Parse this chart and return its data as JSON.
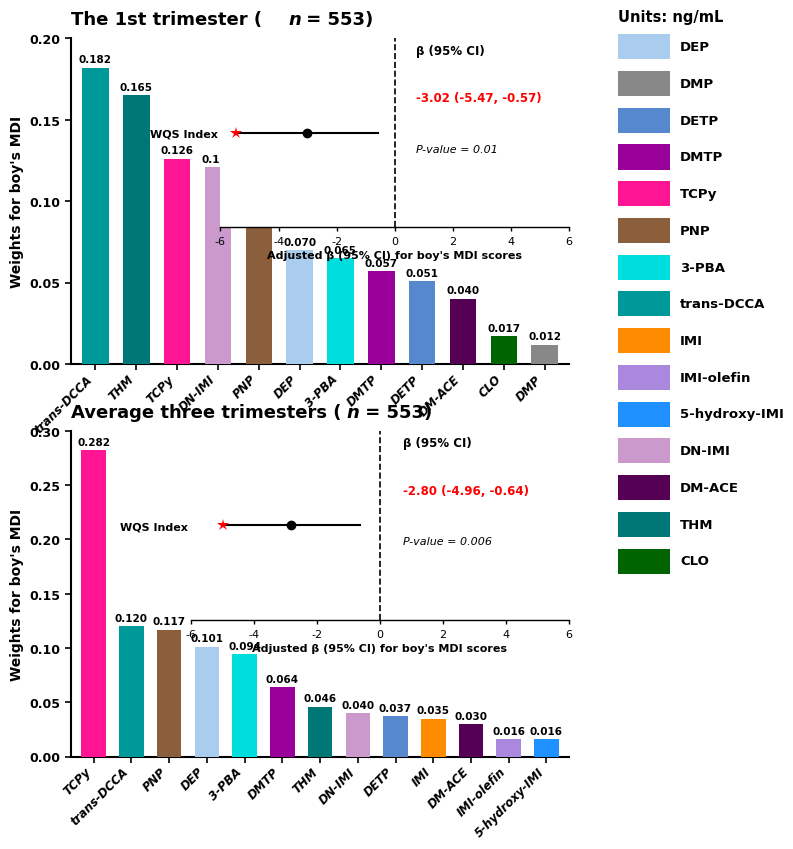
{
  "panel1_title_part1": "The 1st trimester ( ",
  "panel1_title_n": "n",
  "panel1_title_part2": " = 553)",
  "panel2_title_part1": "Average three trimesters ( ",
  "panel2_title_n": "n",
  "panel2_title_part2": " = 553)",
  "panel1_categories": [
    "trans-DCCA",
    "THM",
    "TCPy",
    "DN-IMI",
    "PNP",
    "DEP",
    "3-PBA",
    "DMTP",
    "DETP",
    "DM-ACE",
    "CLO",
    "DMP"
  ],
  "panel1_values": [
    0.182,
    0.165,
    0.126,
    0.121,
    0.096,
    0.07,
    0.065,
    0.057,
    0.051,
    0.04,
    0.017,
    0.012
  ],
  "panel1_colors": [
    "#009999",
    "#007777",
    "#FF1493",
    "#CC99CC",
    "#8B5E3C",
    "#AACCEE",
    "#00DDDD",
    "#990099",
    "#5588CC",
    "#550055",
    "#006400",
    "#888888"
  ],
  "panel1_ylim": [
    0.0,
    0.2
  ],
  "panel1_yticks": [
    0.0,
    0.05,
    0.1,
    0.15,
    0.2
  ],
  "panel2_categories": [
    "TCPy",
    "trans-DCCA",
    "PNP",
    "DEP",
    "3-PBA",
    "DMTP",
    "THM",
    "DN-IMI",
    "DETP",
    "IMI",
    "DM-ACE",
    "IMI-olefin",
    "5-hydroxy-IMI"
  ],
  "panel2_values": [
    0.282,
    0.12,
    0.117,
    0.101,
    0.094,
    0.064,
    0.046,
    0.04,
    0.037,
    0.035,
    0.03,
    0.016,
    0.016
  ],
  "panel2_colors": [
    "#FF1493",
    "#009999",
    "#8B5E3C",
    "#AACCEE",
    "#00DDDD",
    "#990099",
    "#007777",
    "#CC99CC",
    "#5588CC",
    "#FF8C00",
    "#550055",
    "#AA88DD",
    "#1E90FF"
  ],
  "panel2_ylim": [
    0.0,
    0.3
  ],
  "panel2_yticks": [
    0.0,
    0.05,
    0.1,
    0.15,
    0.2,
    0.25,
    0.3
  ],
  "ylabel": "Weights for boy's MDI",
  "inset_xlabel": "Adjusted β (95% CI) for boy's MDI scores",
  "panel1_beta": -3.02,
  "panel1_ci_low": -5.47,
  "panel1_ci_high": -0.57,
  "panel1_beta_str": "-3.02 (-5.47, -0.57)",
  "panel1_pval": "P-value = 0.01",
  "panel2_beta": -2.8,
  "panel2_ci_low": -4.96,
  "panel2_ci_high": -0.64,
  "panel2_beta_str": "-2.80 (-4.96, -0.64)",
  "panel2_pval": "P-value = 0.006",
  "legend_title": "Units: ng/mL",
  "legend_items": [
    {
      "label": "DEP",
      "color": "#AACCEE"
    },
    {
      "label": "DMP",
      "color": "#888888"
    },
    {
      "label": "DETP",
      "color": "#5588CC"
    },
    {
      "label": "DMTP",
      "color": "#990099"
    },
    {
      "label": "TCPy",
      "color": "#FF1493"
    },
    {
      "label": "PNP",
      "color": "#8B5E3C"
    },
    {
      "label": "3-PBA",
      "color": "#00DDDD"
    },
    {
      "label": "trans-DCCA",
      "color": "#009999"
    },
    {
      "label": "IMI",
      "color": "#FF8C00"
    },
    {
      "label": "IMI-olefin",
      "color": "#AA88DD"
    },
    {
      "label": "5-hydroxy-IMI",
      "color": "#1E90FF"
    },
    {
      "label": "DN-IMI",
      "color": "#CC99CC"
    },
    {
      "label": "DM-ACE",
      "color": "#550055"
    },
    {
      "label": "THM",
      "color": "#007777"
    },
    {
      "label": "CLO",
      "color": "#006400"
    }
  ]
}
